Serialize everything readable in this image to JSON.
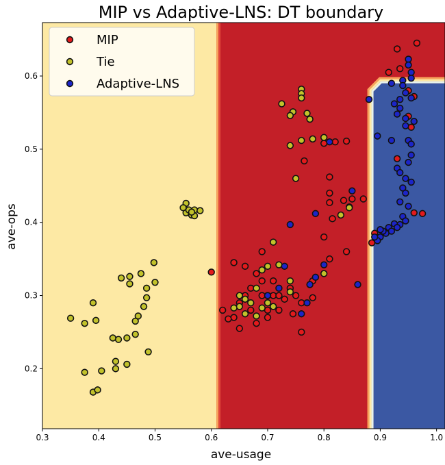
{
  "chart_data": {
    "type": "scatter",
    "title": "MIP vs Adaptive-LNS: DT boundary",
    "xlabel": "ave-usage",
    "ylabel": "ave-ops",
    "xlim": [
      0.3,
      1.015
    ],
    "ylim": [
      0.118,
      0.673
    ],
    "xticks": [
      "0.3",
      "0.4",
      "0.5",
      "0.6",
      "0.7",
      "0.8",
      "0.9",
      "1.0"
    ],
    "yticks": [
      "0.2",
      "0.3",
      "0.4",
      "0.5",
      "0.6"
    ],
    "legend_position": "upper-left",
    "colors": {
      "mip": "#e31a1c",
      "tie": "#c2c22b",
      "lns": "#1c25c8",
      "region_tie": "#fde9a4",
      "region_mip": "#c31f28",
      "region_lns": "#3b58a3"
    },
    "regions": [
      {
        "label": "Tie",
        "x_from": 0.3,
        "x_to": 0.609
      },
      {
        "label": "MIP",
        "x_from": 0.609,
        "x_to": 0.888
      },
      {
        "label": "Adaptive-LNS",
        "x_from": 0.888,
        "x_to": 1.015,
        "y_from": 0.118,
        "y_to": 0.59
      }
    ],
    "series": [
      {
        "name": "MIP",
        "points": [
          [
            0.965,
            0.645
          ],
          [
            0.93,
            0.637
          ],
          [
            0.915,
            0.605
          ],
          [
            0.935,
            0.61
          ],
          [
            0.95,
            0.58
          ],
          [
            0.96,
            0.572
          ],
          [
            0.95,
            0.545
          ],
          [
            0.955,
            0.53
          ],
          [
            0.93,
            0.487
          ],
          [
            0.96,
            0.413
          ],
          [
            0.975,
            0.412
          ],
          [
            0.9,
            0.39
          ],
          [
            0.89,
            0.385
          ],
          [
            0.885,
            0.372
          ],
          [
            0.765,
            0.484
          ],
          [
            0.8,
            0.508
          ],
          [
            0.82,
            0.51
          ],
          [
            0.84,
            0.511
          ],
          [
            0.81,
            0.462
          ],
          [
            0.81,
            0.44
          ],
          [
            0.835,
            0.43
          ],
          [
            0.85,
            0.432
          ],
          [
            0.87,
            0.432
          ],
          [
            0.845,
            0.421
          ],
          [
            0.81,
            0.427
          ],
          [
            0.815,
            0.405
          ],
          [
            0.8,
            0.38
          ],
          [
            0.81,
            0.35
          ],
          [
            0.84,
            0.36
          ],
          [
            0.78,
            0.32
          ],
          [
            0.76,
            0.25
          ],
          [
            0.745,
            0.275
          ],
          [
            0.72,
            0.28
          ],
          [
            0.7,
            0.29
          ],
          [
            0.71,
            0.3
          ],
          [
            0.69,
            0.32
          ],
          [
            0.68,
            0.33
          ],
          [
            0.66,
            0.34
          ],
          [
            0.69,
            0.36
          ],
          [
            0.67,
            0.31
          ],
          [
            0.66,
            0.3
          ],
          [
            0.65,
            0.29
          ],
          [
            0.64,
            0.27
          ],
          [
            0.62,
            0.28
          ],
          [
            0.63,
            0.268
          ],
          [
            0.65,
            0.255
          ],
          [
            0.68,
            0.262
          ],
          [
            0.7,
            0.28
          ],
          [
            0.72,
            0.3
          ],
          [
            0.74,
            0.31
          ],
          [
            0.76,
            0.29
          ],
          [
            0.7,
            0.27
          ],
          [
            0.69,
            0.3
          ],
          [
            0.71,
            0.32
          ],
          [
            0.73,
            0.295
          ],
          [
            0.67,
            0.28
          ],
          [
            0.75,
            0.3
          ],
          [
            0.78,
            0.297
          ],
          [
            0.64,
            0.345
          ],
          [
            0.6,
            0.332
          ]
        ],
        "count": 60
      },
      {
        "name": "Tie",
        "points": [
          [
            0.555,
            0.426
          ],
          [
            0.55,
            0.42
          ],
          [
            0.555,
            0.413
          ],
          [
            0.56,
            0.417
          ],
          [
            0.565,
            0.41
          ],
          [
            0.57,
            0.409
          ],
          [
            0.57,
            0.417
          ],
          [
            0.58,
            0.416
          ],
          [
            0.565,
            0.414
          ],
          [
            0.498,
            0.345
          ],
          [
            0.475,
            0.33
          ],
          [
            0.455,
            0.326
          ],
          [
            0.44,
            0.324
          ],
          [
            0.455,
            0.316
          ],
          [
            0.5,
            0.318
          ],
          [
            0.485,
            0.31
          ],
          [
            0.485,
            0.297
          ],
          [
            0.48,
            0.285
          ],
          [
            0.39,
            0.29
          ],
          [
            0.47,
            0.272
          ],
          [
            0.465,
            0.265
          ],
          [
            0.35,
            0.269
          ],
          [
            0.375,
            0.262
          ],
          [
            0.395,
            0.266
          ],
          [
            0.465,
            0.247
          ],
          [
            0.45,
            0.242
          ],
          [
            0.435,
            0.24
          ],
          [
            0.425,
            0.242
          ],
          [
            0.488,
            0.223
          ],
          [
            0.43,
            0.21
          ],
          [
            0.45,
            0.206
          ],
          [
            0.43,
            0.2
          ],
          [
            0.405,
            0.197
          ],
          [
            0.375,
            0.195
          ],
          [
            0.39,
            0.168
          ],
          [
            0.398,
            0.171
          ],
          [
            0.76,
            0.582
          ],
          [
            0.76,
            0.576
          ],
          [
            0.76,
            0.57
          ],
          [
            0.725,
            0.562
          ],
          [
            0.745,
            0.551
          ],
          [
            0.74,
            0.546
          ],
          [
            0.77,
            0.549
          ],
          [
            0.775,
            0.541
          ],
          [
            0.76,
            0.512
          ],
          [
            0.78,
            0.514
          ],
          [
            0.8,
            0.516
          ],
          [
            0.74,
            0.505
          ],
          [
            0.75,
            0.46
          ],
          [
            0.71,
            0.373
          ],
          [
            0.7,
            0.34
          ],
          [
            0.72,
            0.342
          ],
          [
            0.69,
            0.335
          ],
          [
            0.68,
            0.31
          ],
          [
            0.65,
            0.3
          ],
          [
            0.66,
            0.295
          ],
          [
            0.65,
            0.285
          ],
          [
            0.64,
            0.283
          ],
          [
            0.66,
            0.275
          ],
          [
            0.7,
            0.29
          ],
          [
            0.69,
            0.283
          ],
          [
            0.68,
            0.272
          ],
          [
            0.74,
            0.32
          ],
          [
            0.74,
            0.305
          ],
          [
            0.8,
            0.33
          ],
          [
            0.83,
            0.41
          ],
          [
            0.845,
            0.42
          ],
          [
            0.67,
            0.29
          ],
          [
            0.7,
            0.3
          ],
          [
            0.71,
            0.285
          ]
        ],
        "count": 70
      },
      {
        "name": "Adaptive-LNS",
        "points": [
          [
            0.95,
            0.623
          ],
          [
            0.95,
            0.615
          ],
          [
            0.955,
            0.605
          ],
          [
            0.955,
            0.597
          ],
          [
            0.94,
            0.594
          ],
          [
            0.92,
            0.59
          ],
          [
            0.94,
            0.587
          ],
          [
            0.945,
            0.577
          ],
          [
            0.935,
            0.568
          ],
          [
            0.955,
            0.57
          ],
          [
            0.925,
            0.562
          ],
          [
            0.935,
            0.556
          ],
          [
            0.93,
            0.548
          ],
          [
            0.945,
            0.542
          ],
          [
            0.96,
            0.538
          ],
          [
            0.945,
            0.532
          ],
          [
            0.88,
            0.568
          ],
          [
            0.895,
            0.518
          ],
          [
            0.92,
            0.512
          ],
          [
            0.95,
            0.512
          ],
          [
            0.955,
            0.507
          ],
          [
            0.955,
            0.492
          ],
          [
            0.95,
            0.482
          ],
          [
            0.93,
            0.474
          ],
          [
            0.935,
            0.468
          ],
          [
            0.945,
            0.46
          ],
          [
            0.955,
            0.455
          ],
          [
            0.94,
            0.447
          ],
          [
            0.945,
            0.44
          ],
          [
            0.935,
            0.428
          ],
          [
            0.95,
            0.422
          ],
          [
            0.94,
            0.408
          ],
          [
            0.945,
            0.402
          ],
          [
            0.935,
            0.397
          ],
          [
            0.925,
            0.398
          ],
          [
            0.915,
            0.393
          ],
          [
            0.92,
            0.388
          ],
          [
            0.91,
            0.385
          ],
          [
            0.905,
            0.388
          ],
          [
            0.93,
            0.393
          ],
          [
            0.9,
            0.38
          ],
          [
            0.895,
            0.375
          ],
          [
            0.85,
            0.443
          ],
          [
            0.785,
            0.412
          ],
          [
            0.74,
            0.397
          ],
          [
            0.8,
            0.342
          ],
          [
            0.785,
            0.325
          ],
          [
            0.775,
            0.315
          ],
          [
            0.81,
            0.51
          ],
          [
            0.86,
            0.315
          ],
          [
            0.77,
            0.29
          ],
          [
            0.76,
            0.275
          ],
          [
            0.72,
            0.31
          ],
          [
            0.7,
            0.3
          ],
          [
            0.73,
            0.34
          ],
          [
            0.89,
            0.38
          ],
          [
            0.9,
            0.39
          ]
        ],
        "count": 57
      }
    ]
  }
}
